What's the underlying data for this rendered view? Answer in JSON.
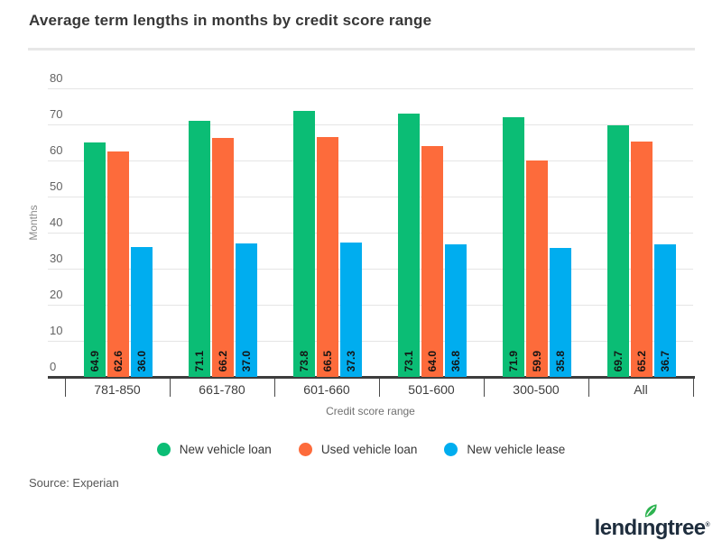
{
  "title": "Average term lengths in months by credit score range",
  "source": "Source: Experian",
  "logo": {
    "text": "lendingtree",
    "mark": "®",
    "leaf_color": "#2db350",
    "navy": "#1e2d3d"
  },
  "colors": {
    "axis": "#3d3d3d",
    "gridline": "#e5e5e5",
    "new_vehicle_loan": "#0bbd75",
    "used_vehicle_loan": "#fd6b3b",
    "new_vehicle_lease": "#00adef"
  },
  "chart_data": {
    "type": "bar",
    "title": "Average term lengths in months by credit score range",
    "categories": [
      "781-850",
      "661-780",
      "601-660",
      "501-600",
      "300-500",
      "All"
    ],
    "series": [
      {
        "name": "New vehicle loan",
        "color": "#0bbd75",
        "values": [
          64.9,
          71.1,
          73.8,
          73.1,
          71.9,
          69.7
        ]
      },
      {
        "name": "Used vehicle loan",
        "color": "#fd6b3b",
        "values": [
          62.6,
          66.2,
          66.5,
          64.0,
          59.9,
          65.2
        ]
      },
      {
        "name": "New vehicle lease",
        "color": "#00adef",
        "values": [
          36.0,
          37.0,
          37.3,
          36.8,
          35.8,
          36.7
        ]
      }
    ],
    "xlabel": "Credit score range",
    "ylabel": "Months",
    "ylim": [
      0,
      80
    ],
    "ytick_interval": 10,
    "grid": true,
    "legend_position": "bottom",
    "value_labels": true,
    "value_label_decimals": 1
  }
}
